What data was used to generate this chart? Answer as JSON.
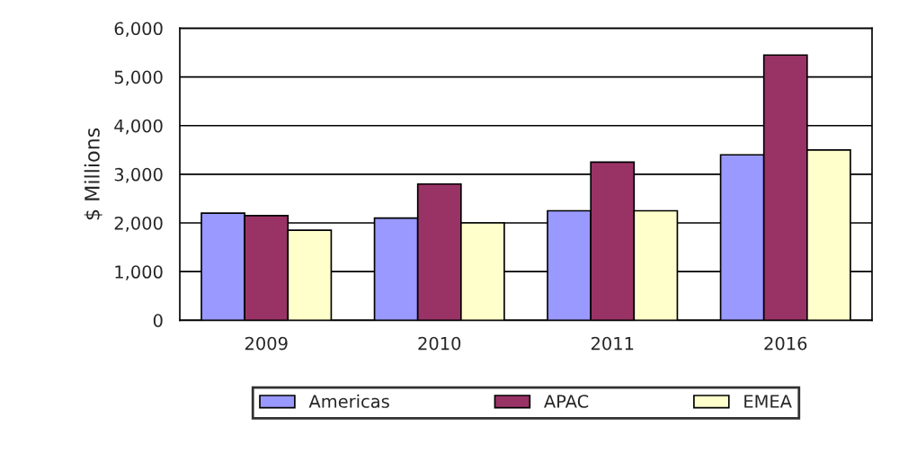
{
  "chart_data": {
    "type": "bar",
    "ylabel": "$ Millions",
    "categories": [
      "2009",
      "2010",
      "2011",
      "2016"
    ],
    "series": [
      {
        "name": "Americas",
        "color": "#9999ff",
        "values": [
          2200,
          2100,
          2250,
          3400
        ]
      },
      {
        "name": "APAC",
        "color": "#993366",
        "values": [
          2150,
          2800,
          3250,
          5450
        ]
      },
      {
        "name": "EMEA",
        "color": "#ffffcc",
        "values": [
          1850,
          2000,
          2250,
          3500
        ]
      }
    ],
    "ylim": [
      0,
      6000
    ],
    "yticks": [
      {
        "value": 0,
        "label": "0"
      },
      {
        "value": 1000,
        "label": "1,000"
      },
      {
        "value": 2000,
        "label": "2,000"
      },
      {
        "value": 3000,
        "label": "3,000"
      },
      {
        "value": 4000,
        "label": "4,000"
      },
      {
        "value": 5000,
        "label": "5,000"
      },
      {
        "value": 6000,
        "label": "6,000"
      }
    ],
    "grid": "y",
    "legend": "bottom"
  }
}
